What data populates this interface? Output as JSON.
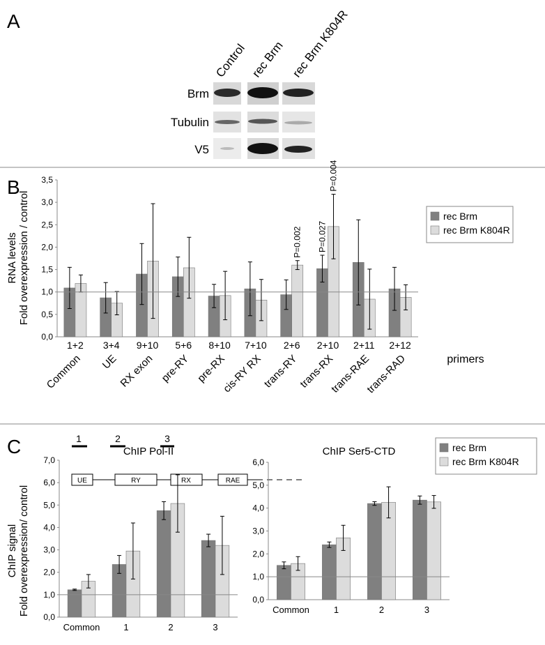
{
  "panel_labels": [
    "A",
    "B",
    "C"
  ],
  "blot": {
    "lanes": [
      "Control",
      "rec Brm",
      "rec Brm K804R"
    ],
    "rows": [
      "Brm",
      "Tubulin",
      "V5"
    ]
  },
  "diagram": {
    "primers": [
      "1",
      "2",
      "3"
    ],
    "regions": [
      "UE",
      "RY",
      "RX",
      "RAE"
    ]
  },
  "chart_data": [
    {
      "type": "bar",
      "ylabel": [
        "RNA levels",
        "Fold overexpression / control"
      ],
      "categories": [
        "Common",
        "UE",
        "RX exon",
        "pre-RY",
        "pre-RX",
        "cis-RY RX",
        "trans-RY",
        "trans-RX",
        "trans-RAE",
        "trans-RAD"
      ],
      "primers": [
        "1+2",
        "3+4",
        "9+10",
        "5+6",
        "8+10",
        "7+10",
        "2+6",
        "2+10",
        "2+11",
        "2+12"
      ],
      "primers_label": "primers",
      "ylim": [
        0,
        3.5
      ],
      "yticks": [
        {
          "value": 0,
          "label": "0,0"
        },
        {
          "value": 0.5,
          "label": "0,5"
        },
        {
          "value": 1,
          "label": "1,0"
        },
        {
          "value": 1.5,
          "label": "1,5"
        },
        {
          "value": 2,
          "label": "2,0"
        },
        {
          "value": 2.5,
          "label": "2,5"
        },
        {
          "value": 3,
          "label": "3,0"
        },
        {
          "value": 3.5,
          "label": "3,5"
        }
      ],
      "reference_line": 1,
      "legend": "right",
      "series": [
        {
          "name": "rec Brm",
          "color": "#808080",
          "values": [
            1.09,
            0.87,
            1.4,
            1.34,
            0.91,
            1.07,
            0.94,
            1.52,
            1.66,
            1.07
          ],
          "errors": [
            0.46,
            0.34,
            0.68,
            0.44,
            0.26,
            0.6,
            0.33,
            0.3,
            0.95,
            0.48
          ],
          "annotations": [
            null,
            null,
            null,
            null,
            null,
            null,
            null,
            "P=0.027",
            null,
            null
          ]
        },
        {
          "name": "rec Brm K804R",
          "color": "#dcdcdc",
          "values": [
            1.19,
            0.75,
            1.69,
            1.54,
            0.92,
            0.82,
            1.6,
            2.46,
            0.84,
            0.88
          ],
          "errors": [
            0.19,
            0.26,
            1.28,
            0.68,
            0.54,
            0.46,
            0.1,
            0.72,
            0.67,
            0.28
          ],
          "annotations": [
            null,
            null,
            null,
            null,
            null,
            null,
            "P=0.002",
            "P=0.004",
            null,
            null
          ]
        }
      ]
    },
    {
      "type": "bar",
      "title": "ChIP Pol-II",
      "ylabel": [
        "ChIP signal",
        "Fold overexpression/ control"
      ],
      "categories": [
        "Common",
        "1",
        "2",
        "3"
      ],
      "ylim": [
        0,
        7
      ],
      "yticks": [
        {
          "value": 0,
          "label": "0,0"
        },
        {
          "value": 1,
          "label": "1,0"
        },
        {
          "value": 2,
          "label": "2,0"
        },
        {
          "value": 3,
          "label": "3,0"
        },
        {
          "value": 4,
          "label": "4,0"
        },
        {
          "value": 5,
          "label": "5,0"
        },
        {
          "value": 6,
          "label": "6,0"
        },
        {
          "value": 7,
          "label": "7,0"
        }
      ],
      "reference_line": 1,
      "series": [
        {
          "name": "rec Brm",
          "color": "#808080",
          "values": [
            1.22,
            2.35,
            4.75,
            3.42
          ],
          "errors": [
            0.03,
            0.4,
            0.4,
            0.28
          ]
        },
        {
          "name": "rec Brm K804R",
          "color": "#dcdcdc",
          "values": [
            1.6,
            2.95,
            5.07,
            3.2
          ],
          "errors": [
            0.3,
            1.25,
            1.28,
            1.3
          ]
        }
      ]
    },
    {
      "type": "bar",
      "title": "ChIP Ser5-CTD",
      "categories": [
        "Common",
        "1",
        "2",
        "3"
      ],
      "ylim": [
        0,
        6
      ],
      "yticks": [
        {
          "value": 0,
          "label": "0,0"
        },
        {
          "value": 1,
          "label": "1,0"
        },
        {
          "value": 2,
          "label": "2,0"
        },
        {
          "value": 3,
          "label": "3,0"
        },
        {
          "value": 4,
          "label": "4,0"
        },
        {
          "value": 5,
          "label": "5,0"
        },
        {
          "value": 6,
          "label": "6,0"
        }
      ],
      "reference_line": 1,
      "legend": "upper right",
      "series": [
        {
          "name": "rec Brm",
          "color": "#808080",
          "values": [
            1.5,
            2.4,
            4.2,
            4.35
          ],
          "errors": [
            0.15,
            0.12,
            0.08,
            0.18
          ]
        },
        {
          "name": "rec Brm K804R",
          "color": "#dcdcdc",
          "values": [
            1.58,
            2.7,
            4.25,
            4.27
          ],
          "errors": [
            0.3,
            0.55,
            0.68,
            0.28
          ]
        }
      ]
    }
  ]
}
